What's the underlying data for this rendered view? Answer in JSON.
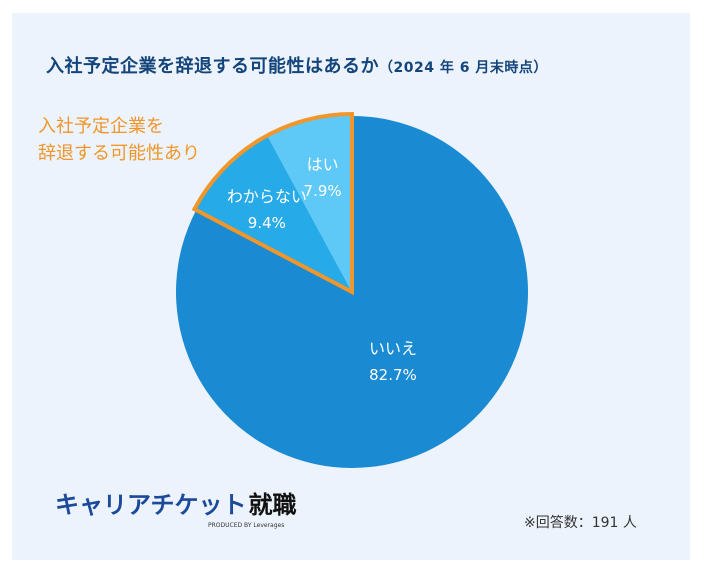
{
  "chart_data": {
    "type": "pie",
    "title": "入社予定企業を辞退する可能性はあるか",
    "subtitle": "（2024 年 6 月末時点）",
    "slices": [
      {
        "label": "いいえ",
        "value": 82.7,
        "value_label": "82.7%",
        "color": "#1a8ad2"
      },
      {
        "label": "わからない",
        "value": 9.4,
        "value_label": "9.4%",
        "color": "#27aae8",
        "highlighted": true
      },
      {
        "label": "はい",
        "value": 7.9,
        "value_label": "7.9%",
        "color": "#5ec8f6",
        "highlighted": true
      }
    ],
    "highlight_color": "#f0962a",
    "annotation": "入社予定企業を\n辞退する可能性あり",
    "note": "※回答数：191 人"
  },
  "logo": {
    "name": "キャリアチケット",
    "suffix": "就職",
    "produced_by": "PRODUCED BY Leverages"
  }
}
